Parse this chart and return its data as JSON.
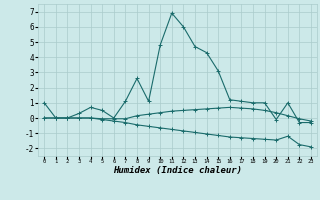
{
  "xlabel": "Humidex (Indice chaleur)",
  "ylabel": "",
  "bg_color": "#cce9e9",
  "grid_color": "#aacccc",
  "line_color": "#1a6b6b",
  "xlim": [
    -0.5,
    23.5
  ],
  "ylim": [
    -2.5,
    7.5
  ],
  "xticks": [
    0,
    1,
    2,
    3,
    4,
    5,
    6,
    7,
    8,
    9,
    10,
    11,
    12,
    13,
    14,
    15,
    16,
    17,
    18,
    19,
    20,
    21,
    22,
    23
  ],
  "yticks": [
    -2,
    -1,
    0,
    1,
    2,
    3,
    4,
    5,
    6,
    7
  ],
  "line1_x": [
    0,
    1,
    2,
    3,
    4,
    5,
    6,
    7,
    8,
    9,
    10,
    11,
    12,
    13,
    14,
    15,
    16,
    17,
    18,
    19,
    20,
    21,
    22,
    23
  ],
  "line1_y": [
    1.0,
    0.0,
    0.0,
    0.3,
    0.7,
    0.5,
    0.0,
    1.1,
    2.6,
    1.1,
    4.8,
    6.9,
    6.0,
    4.7,
    4.3,
    3.1,
    1.2,
    1.1,
    1.0,
    1.0,
    -0.1,
    1.0,
    -0.3,
    -0.3
  ],
  "line2_x": [
    0,
    1,
    2,
    3,
    4,
    5,
    6,
    7,
    8,
    9,
    10,
    11,
    12,
    13,
    14,
    15,
    16,
    17,
    18,
    19,
    20,
    21,
    22,
    23
  ],
  "line2_y": [
    0.0,
    0.0,
    0.0,
    0.0,
    0.0,
    -0.05,
    -0.05,
    -0.05,
    0.15,
    0.25,
    0.35,
    0.45,
    0.5,
    0.55,
    0.6,
    0.65,
    0.7,
    0.65,
    0.6,
    0.5,
    0.35,
    0.15,
    -0.05,
    -0.2
  ],
  "line3_x": [
    0,
    1,
    2,
    3,
    4,
    5,
    6,
    7,
    8,
    9,
    10,
    11,
    12,
    13,
    14,
    15,
    16,
    17,
    18,
    19,
    20,
    21,
    22,
    23
  ],
  "line3_y": [
    0.0,
    0.0,
    0.0,
    0.0,
    0.0,
    -0.1,
    -0.2,
    -0.3,
    -0.45,
    -0.55,
    -0.65,
    -0.75,
    -0.85,
    -0.95,
    -1.05,
    -1.15,
    -1.25,
    -1.3,
    -1.35,
    -1.4,
    -1.45,
    -1.2,
    -1.75,
    -1.9
  ]
}
